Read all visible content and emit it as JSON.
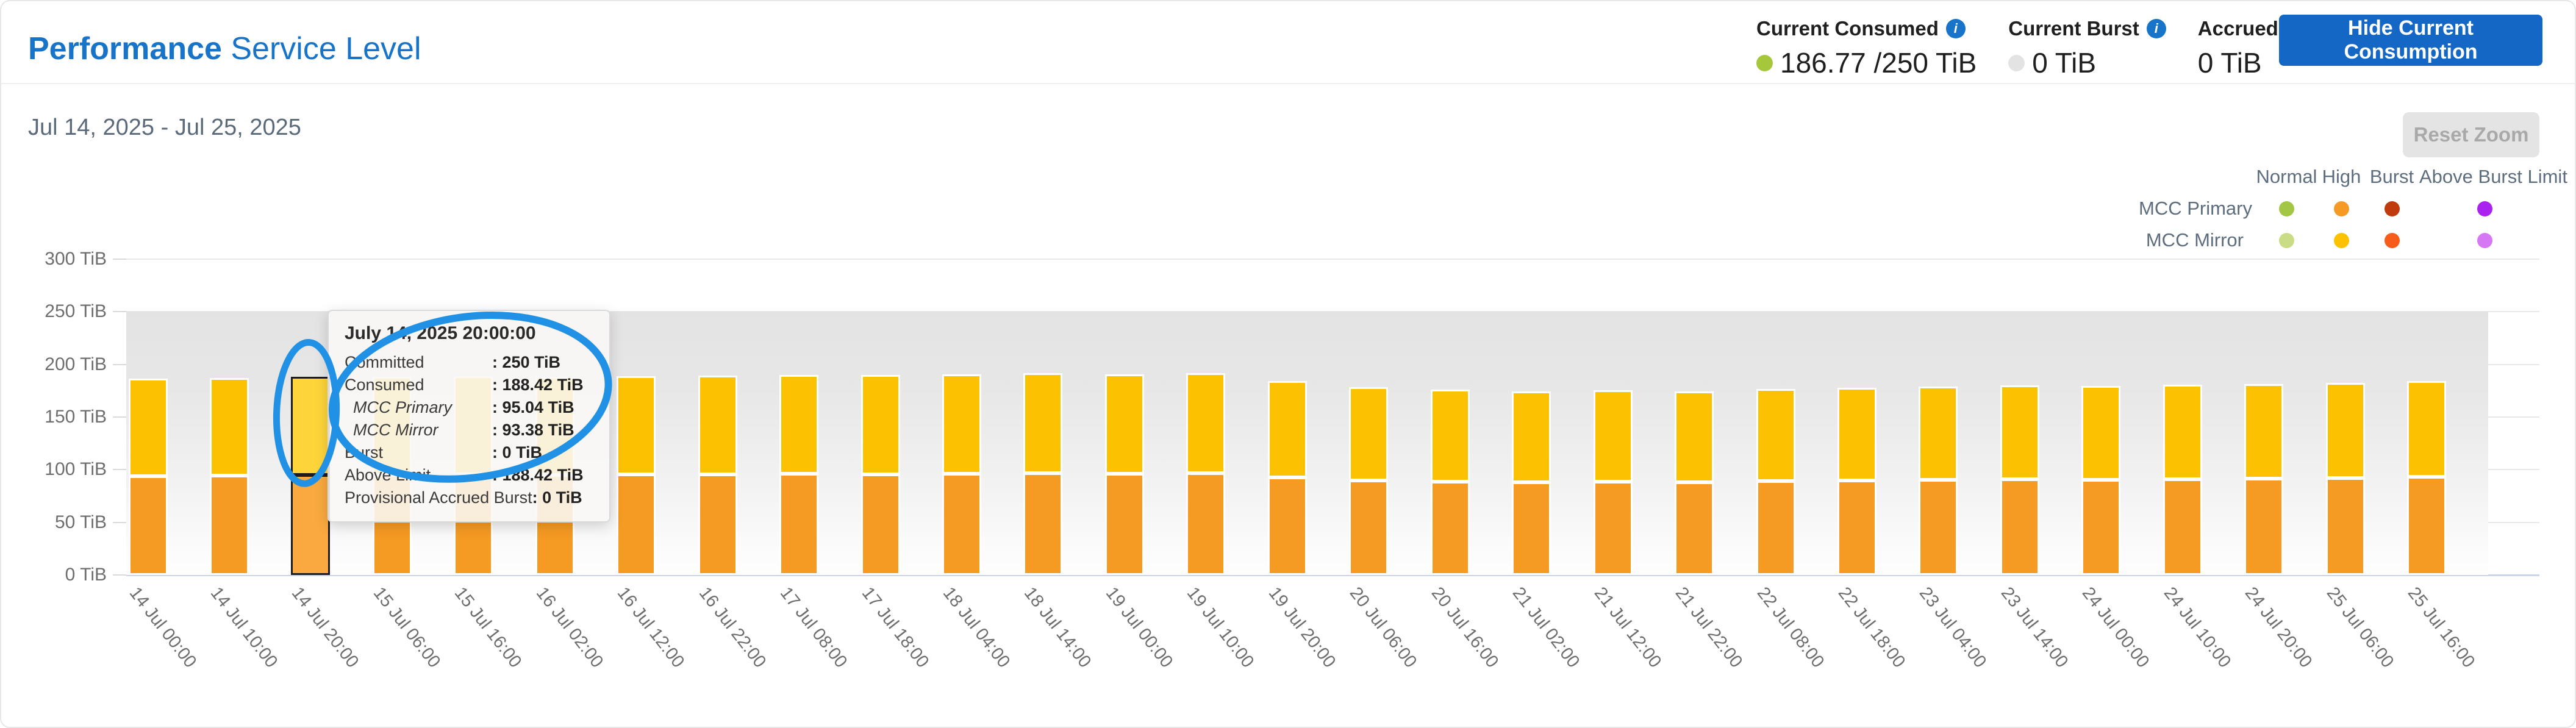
{
  "header": {
    "title_bold": "Performance",
    "title_rest": " Service Level",
    "metrics": [
      {
        "label": "Current Consumed",
        "value": "186.77 /250 TiB",
        "dot_color": "#a6c73c"
      },
      {
        "label": "Current Burst",
        "value": "0 TiB",
        "dot_color": "#e3e3e3"
      },
      {
        "label": "Accrued Burst",
        "value": "0 TiB",
        "dot_color": ""
      }
    ],
    "hide_button": "Hide Current Consumption"
  },
  "toolbar": {
    "date_range": "Jul 14, 2025 - Jul 25, 2025",
    "reset_zoom": "Reset Zoom"
  },
  "legend": {
    "columns": [
      "Normal",
      "High",
      "Burst",
      "Above Burst Limit"
    ],
    "rows": [
      {
        "label": "MCC Primary",
        "colors": {
          "normal": "#a3c644",
          "high": "#f59b25",
          "burst": "#bf3a0c",
          "above_burst_limit": "#aa22f0"
        }
      },
      {
        "label": "MCC Mirror",
        "colors": {
          "normal": "#cbdc87",
          "high": "#fcc200",
          "burst": "#f85c1a",
          "above_burst_limit": "#d678f3"
        }
      }
    ]
  },
  "tooltip": {
    "title": "July 14, 2025 20:00:00",
    "rows": [
      {
        "label": "Committed",
        "value": ": 250 TiB",
        "italic": false
      },
      {
        "label": "Consumed",
        "value": ": 188.42 TiB",
        "italic": false
      },
      {
        "label": "MCC Primary",
        "value": ": 95.04 TiB",
        "italic": true
      },
      {
        "label": "MCC Mirror",
        "value": ": 93.38 TiB",
        "italic": true
      },
      {
        "label": "Burst",
        "value": ": 0 TiB",
        "italic": false
      },
      {
        "label": "Above Limit",
        "value": ": 188.42 TiB",
        "italic": false
      },
      {
        "label": "Provisional Accrued Burst",
        "value": ": 0 TiB",
        "italic": false
      }
    ]
  },
  "annotations": {
    "circles": 2,
    "color": "#2191e5",
    "style": "hand-drawn ellipse"
  },
  "chart_data": {
    "type": "bar",
    "stacked": true,
    "title": "",
    "ylabel": "TiB",
    "ylim": [
      0,
      300
    ],
    "ytick_step": 50,
    "ytick_suffix": " TiB",
    "grid": true,
    "legend_position": "top-right",
    "committed_band": {
      "from_tib": 0,
      "to_tib": 250
    },
    "x_interval_hours": 10,
    "categories": [
      "14 Jul 00:00",
      "14 Jul 10:00",
      "14 Jul 20:00",
      "15 Jul 06:00",
      "15 Jul 16:00",
      "16 Jul 02:00",
      "16 Jul 12:00",
      "16 Jul 22:00",
      "17 Jul 08:00",
      "17 Jul 18:00",
      "18 Jul 04:00",
      "18 Jul 14:00",
      "19 Jul 00:00",
      "19 Jul 10:00",
      "19 Jul 20:00",
      "20 Jul 06:00",
      "20 Jul 16:00",
      "21 Jul 02:00",
      "21 Jul 12:00",
      "21 Jul 22:00",
      "22 Jul 08:00",
      "22 Jul 18:00",
      "23 Jul 04:00",
      "23 Jul 14:00",
      "24 Jul 00:00",
      "24 Jul 10:00",
      "24 Jul 20:00",
      "25 Jul 06:00",
      "25 Jul 16:00"
    ],
    "series": [
      {
        "name": "MCC Primary",
        "color": "#f59a23",
        "values": [
          94.03,
          94.43,
          95.04,
          94.83,
          95.29,
          95.08,
          95.34,
          95.64,
          95.89,
          95.84,
          96.24,
          96.59,
          96.04,
          96.74,
          92.91,
          89.93,
          88.87,
          87.91,
          88.57,
          88.06,
          88.97,
          89.57,
          90.13,
          90.84,
          90.58,
          91.09,
          91.54,
          92.1,
          93.01
        ]
      },
      {
        "name": "MCC Mirror",
        "color": "#fcc101",
        "values": [
          92.37,
          92.77,
          93.38,
          93.17,
          93.61,
          93.42,
          93.66,
          93.96,
          94.21,
          94.16,
          94.56,
          94.91,
          94.36,
          95.06,
          91.29,
          88.37,
          87.33,
          86.39,
          87.03,
          86.54,
          87.43,
          88.03,
          88.57,
          89.26,
          89.02,
          89.51,
          89.96,
          90.5,
          91.39
        ]
      }
    ],
    "highlight": {
      "index": 2,
      "primary_color": "#f9a93f",
      "mirror_color": "#fdd53a",
      "border_color": "#1c1c1c"
    }
  }
}
